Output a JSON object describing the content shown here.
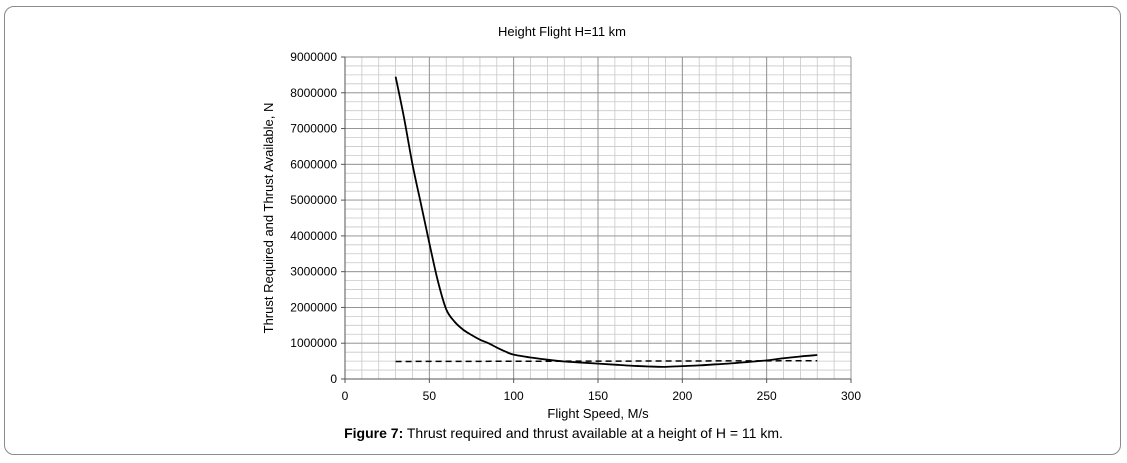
{
  "chart_data": {
    "type": "line",
    "title": "Height Flight H=11 km",
    "xlabel": "Flight Speed, M/s",
    "ylabel": "Thrust Required and Thrust Available, N",
    "xlim": [
      0,
      300
    ],
    "ylim": [
      0,
      9000000
    ],
    "x_ticks": [
      0,
      50,
      100,
      150,
      200,
      250,
      300
    ],
    "y_ticks": [
      0,
      1000000,
      2000000,
      3000000,
      4000000,
      5000000,
      6000000,
      7000000,
      8000000,
      9000000
    ],
    "x_tick_labels": [
      "0",
      "50",
      "100",
      "150",
      "200",
      "250",
      "300"
    ],
    "y_tick_labels": [
      "0",
      "1000000",
      "2000000",
      "3000000",
      "4000000",
      "5000000",
      "6000000",
      "7000000",
      "8000000",
      "9000000"
    ],
    "grid": true,
    "legend": "none",
    "series": [
      {
        "style": "solid",
        "color": "#000000",
        "x": [
          30,
          35,
          40,
          45,
          50,
          55,
          60,
          65,
          70,
          75,
          80,
          85,
          90,
          95,
          100,
          110,
          120,
          130,
          140,
          150,
          160,
          170,
          180,
          190,
          200,
          210,
          220,
          230,
          240,
          250,
          260,
          270,
          280
        ],
        "y": [
          8450000,
          7300000,
          6000000,
          4900000,
          3800000,
          2750000,
          1950000,
          1600000,
          1380000,
          1230000,
          1100000,
          1000000,
          880000,
          770000,
          680000,
          600000,
          540000,
          490000,
          460000,
          430000,
          400000,
          370000,
          350000,
          340000,
          360000,
          380000,
          410000,
          440000,
          480000,
          520000,
          580000,
          630000,
          670000
        ]
      },
      {
        "style": "dashed",
        "color": "#000000",
        "x": [
          30,
          280
        ],
        "y": [
          490000,
          510000
        ]
      }
    ]
  },
  "caption": {
    "label": "Figure 7:",
    "text": " Thrust required and thrust available at a height of H = 11 km."
  }
}
